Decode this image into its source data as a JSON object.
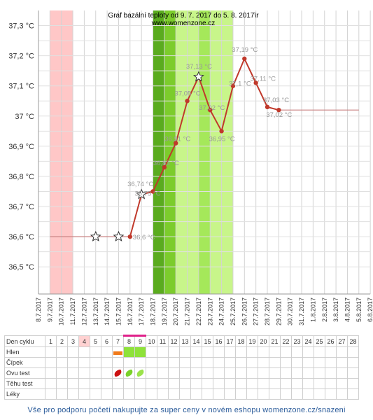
{
  "title_line1": "Graf bazální teploty od 9. 7. 2017 do 5. 8. 2017\\r",
  "title_line2": "www.womenzone.cz",
  "chart_data": {
    "type": "line",
    "y_unit": "°C",
    "yticks": [
      "36,5 °C",
      "36,6 °C",
      "36,7 °C",
      "36,8 °C",
      "36,9 °C",
      "37 °C",
      "37,1 °C",
      "37,2 °C",
      "37,3 °C"
    ],
    "ylim": [
      36.41,
      37.35
    ],
    "x": [
      "8.7.2017",
      "9.7.2017",
      "10.7.2017",
      "11.7.2017",
      "12.7.2017",
      "13.7.2017",
      "14.7.2017",
      "15.7.2017",
      "16.7.2017",
      "17.7.2017",
      "18.7.2017",
      "19.7.2017",
      "20.7.2017",
      "21.7.2017",
      "22.7.2017",
      "23.7.2017",
      "24.7.2017",
      "25.7.2017",
      "26.7.2017",
      "27.7.2017",
      "28.7.2017",
      "29.7.2017",
      "30.7.2017",
      "31.7.2017",
      "1.8.2017",
      "2.8.2017",
      "3.8.2017",
      "4.8.2017",
      "5.8.2017",
      "6.8.2017"
    ],
    "series": [
      {
        "points": [
          {
            "x": "16.7.2017",
            "y": 36.6,
            "label": "36,6 °C"
          },
          {
            "x": "17.7.2017",
            "y": 36.74,
            "label": "36,74 °C",
            "star": true
          },
          {
            "x": "18.7.2017",
            "y": 36.75,
            "label": "36,75 °C"
          },
          {
            "x": "19.7.2017",
            "y": 36.83,
            "label": "36,83 °C"
          },
          {
            "x": "20.7.2017",
            "y": 36.91,
            "label": "36,91 °C"
          },
          {
            "x": "21.7.2017",
            "y": 37.05,
            "label": "37,05 °C"
          },
          {
            "x": "22.7.2017",
            "y": 37.13,
            "label": "37,13 °C",
            "star": true
          },
          {
            "x": "23.7.2017",
            "y": 37.02,
            "label": "37,02 °C"
          },
          {
            "x": "24.7.2017",
            "y": 36.95,
            "label": "36,95 °C"
          },
          {
            "x": "25.7.2017",
            "y": 37.1,
            "label": "37,1 °C"
          },
          {
            "x": "26.7.2017",
            "y": 37.19,
            "label": "37,19 °C"
          },
          {
            "x": "27.7.2017",
            "y": 37.11,
            "label": "37,11 °C"
          },
          {
            "x": "28.7.2017",
            "y": 37.03,
            "label": "37,03 °C"
          },
          {
            "x": "29.7.2017",
            "y": 37.02,
            "label": "37,02 °C"
          }
        ]
      }
    ],
    "star_markers_on_coverline": [
      "13.7.2017",
      "15.7.2017"
    ],
    "coverline_before": {
      "from": "9.7.2017",
      "to": "16.7.2017",
      "y": 36.6
    },
    "coverline_after": {
      "from": "29.7.2017",
      "to": "5.8.2017",
      "y": 37.02
    },
    "bands": [
      {
        "from": "9.7.2017",
        "to": "11.7.2017",
        "color": "#ffc7c7"
      },
      {
        "from": "18.7.2017",
        "to": "19.7.2017",
        "color": "#5aab1e"
      },
      {
        "from": "19.7.2017",
        "to": "20.7.2017",
        "color": "#7ccc2c"
      },
      {
        "from": "20.7.2017",
        "to": "22.7.2017",
        "color": "#c8f58a"
      },
      {
        "from": "22.7.2017",
        "to": "23.7.2017",
        "color": "#a5e85a"
      },
      {
        "from": "23.7.2017",
        "to": "25.7.2017",
        "color": "#c8f58a"
      }
    ],
    "line_color": "#c0392b",
    "point_color": "#c0392b",
    "label_color": "#9a9a9a"
  },
  "table": {
    "days": [
      "1",
      "2",
      "3",
      "4",
      "5",
      "6",
      "7",
      "8",
      "9",
      "10",
      "11",
      "12",
      "13",
      "14",
      "15",
      "16",
      "17",
      "18",
      "19",
      "20",
      "21",
      "22",
      "23",
      "24",
      "25",
      "26",
      "27",
      "28"
    ],
    "rows": [
      {
        "label": "Den cyklu"
      },
      {
        "label": "Hlen"
      },
      {
        "label": "Čípek"
      },
      {
        "label": "Ovu test"
      },
      {
        "label": "Těhu test"
      },
      {
        "label": "Léky"
      }
    ],
    "highlight_day": "4",
    "highlight_color": "#ffd1d1",
    "marked_days": [
      "8",
      "9"
    ],
    "marked_color": "#e0208a",
    "hlen_cells": [
      {
        "day": "7",
        "color": "#f07a1a",
        "type": "bar"
      },
      {
        "day": "8",
        "color": "#8ee23a",
        "type": "block"
      },
      {
        "day": "9",
        "color": "#8ee23a",
        "type": "block"
      }
    ],
    "ovu_cells": [
      {
        "day": "7",
        "color": "#cc1111"
      },
      {
        "day": "8",
        "color": "#7ad12a"
      },
      {
        "day": "9",
        "color": "#9be24a"
      }
    ]
  },
  "footer": "Vše pro podporu početí nakupujte za super ceny v novém eshopu womenzone.cz/snazeni"
}
